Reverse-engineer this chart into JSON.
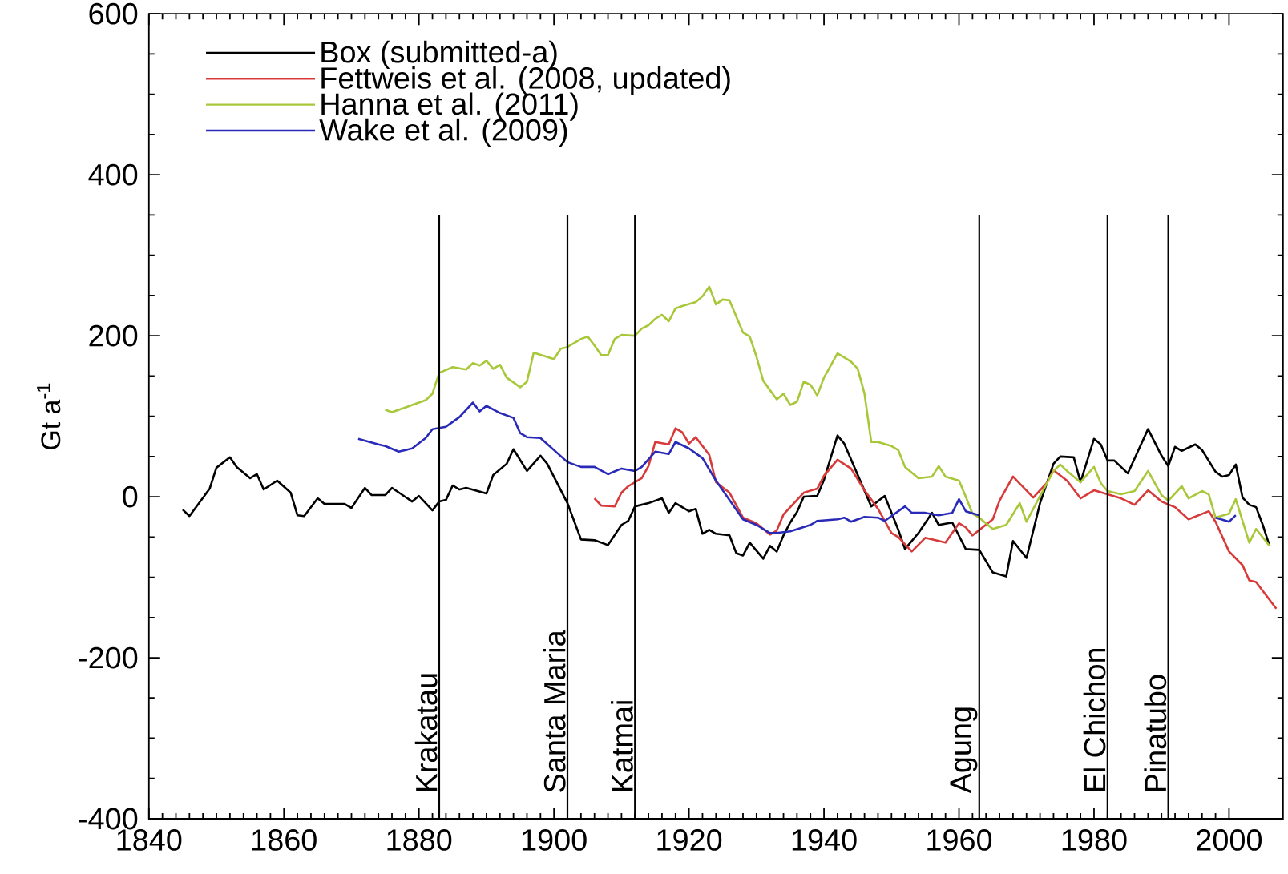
{
  "chart_data": {
    "type": "line",
    "ylabel": "Gt a$^{-1}$",
    "xlim": [
      1840,
      2008
    ],
    "xticks": [
      1840,
      1860,
      1880,
      1900,
      1920,
      1940,
      1960,
      1980,
      2000
    ],
    "ylim": [
      -400,
      600
    ],
    "yticks": [
      -400,
      -200,
      0,
      200,
      400,
      600
    ],
    "legend": "top left",
    "series": [
      {
        "name": "Box (submitted-a)",
        "color": "#000000",
        "x": [
          1845,
          1846,
          1849,
          1850,
          1852,
          1853,
          1855,
          1856,
          1857,
          1859,
          1861,
          1862,
          1863,
          1865,
          1866,
          1869,
          1870,
          1872,
          1873,
          1875,
          1876,
          1879,
          1880,
          1882,
          1883,
          1884,
          1885,
          1886,
          1887,
          1890,
          1891,
          1893,
          1894,
          1896,
          1898,
          1899,
          1902,
          1904,
          1906,
          1908,
          1910,
          1911,
          1912,
          1914,
          1916,
          1917,
          1918,
          1920,
          1921,
          1922,
          1923,
          1924,
          1926,
          1927,
          1928,
          1929,
          1931,
          1932,
          1933,
          1934,
          1935,
          1936,
          1937,
          1939,
          1940,
          1942,
          1943,
          1947,
          1949,
          1951,
          1952,
          1954,
          1956,
          1957,
          1959,
          1961,
          1963,
          1965,
          1967,
          1968,
          1970,
          1972,
          1974,
          1975,
          1977,
          1978,
          1980,
          1981,
          1982,
          1983,
          1985,
          1988,
          1990,
          1991,
          1992,
          1993,
          1995,
          1996,
          1998,
          1999,
          2000,
          2001,
          2002,
          2003,
          2004,
          2005,
          2006
        ],
        "values": [
          -16,
          -24,
          10,
          36,
          49,
          37,
          23,
          28,
          9,
          20,
          5,
          -23,
          -24,
          -2,
          -9,
          -9,
          -14,
          11,
          2,
          2,
          11,
          -6,
          1,
          -17,
          -6,
          -4,
          14,
          9,
          11,
          4,
          27,
          41,
          59,
          32,
          51,
          41,
          -8,
          -53,
          -54,
          -60,
          -35,
          -30,
          -12,
          -8,
          -2,
          -20,
          -8,
          -18,
          -15,
          -46,
          -41,
          -46,
          -48,
          -70,
          -73,
          -57,
          -77,
          -61,
          -68,
          -48,
          -32,
          -19,
          0,
          1,
          21,
          76,
          66,
          -12,
          1,
          -41,
          -65,
          -45,
          -20,
          -35,
          -32,
          -65,
          -66,
          -94,
          -99,
          -55,
          -76,
          -8,
          41,
          50,
          49,
          18,
          72,
          65,
          45,
          45,
          29,
          84,
          51,
          38,
          62,
          57,
          65,
          58,
          31,
          25,
          27,
          40,
          -1,
          -10,
          -13,
          -35,
          -61
        ]
      },
      {
        "name": "Fettweis et al. (2008, updated)",
        "color": "#d83a3a",
        "x": [
          1906,
          1907,
          1909,
          1910,
          1911,
          1913,
          1914,
          1915,
          1917,
          1918,
          1919,
          1920,
          1921,
          1923,
          1924,
          1926,
          1928,
          1930,
          1932,
          1933,
          1934,
          1937,
          1939,
          1940,
          1942,
          1944,
          1946,
          1948,
          1950,
          1951,
          1953,
          1955,
          1957,
          1958,
          1960,
          1961,
          1962,
          1965,
          1966,
          1968,
          1971,
          1973,
          1974,
          1976,
          1978,
          1980,
          1982,
          1984,
          1986,
          1988,
          1990,
          1992,
          1994,
          1997,
          1998,
          2000,
          2002,
          2003,
          2004,
          2007
        ],
        "values": [
          -2,
          -11,
          -12,
          5,
          13,
          23,
          38,
          68,
          65,
          85,
          80,
          66,
          74,
          52,
          18,
          5,
          -26,
          -33,
          -47,
          -42,
          -22,
          5,
          10,
          26,
          46,
          35,
          8,
          -15,
          -45,
          -50,
          -68,
          -51,
          -55,
          -57,
          -33,
          -38,
          -48,
          -28,
          -5,
          25,
          -1,
          17,
          33,
          20,
          -2,
          8,
          3,
          -2,
          -10,
          8,
          -6,
          -13,
          -28,
          -18,
          -31,
          -68,
          -85,
          -104,
          -106,
          -139
        ]
      },
      {
        "name": "Hanna et al. (2011)",
        "color": "#a8c83a",
        "x": [
          1875,
          1876,
          1879,
          1881,
          1882,
          1883,
          1885,
          1887,
          1888,
          1889,
          1890,
          1891,
          1892,
          1893,
          1895,
          1896,
          1897,
          1900,
          1901,
          1902,
          1904,
          1905,
          1906,
          1907,
          1908,
          1909,
          1910,
          1912,
          1913,
          1914,
          1915,
          1916,
          1917,
          1918,
          1919,
          1921,
          1922,
          1923,
          1924,
          1925,
          1926,
          1928,
          1929,
          1930,
          1931,
          1933,
          1934,
          1935,
          1936,
          1937,
          1938,
          1939,
          1940,
          1942,
          1944,
          1945,
          1946,
          1947,
          1948,
          1950,
          1951,
          1952,
          1954,
          1956,
          1957,
          1958,
          1960,
          1961,
          1962,
          1963,
          1965,
          1967,
          1969,
          1970,
          1972,
          1974,
          1975,
          1976,
          1978,
          1980,
          1981,
          1982,
          1984,
          1986,
          1988,
          1990,
          1991,
          1993,
          1994,
          1996,
          1997,
          1998,
          2000,
          2001,
          2003,
          2004,
          2006
        ],
        "values": [
          108,
          105,
          114,
          120,
          128,
          154,
          161,
          158,
          166,
          163,
          169,
          159,
          164,
          148,
          136,
          143,
          179,
          171,
          184,
          186,
          196,
          199,
          188,
          176,
          176,
          196,
          201,
          200,
          209,
          213,
          221,
          226,
          218,
          234,
          237,
          242,
          249,
          261,
          239,
          245,
          244,
          204,
          199,
          174,
          144,
          121,
          128,
          114,
          118,
          143,
          139,
          126,
          148,
          178,
          168,
          159,
          128,
          68,
          68,
          63,
          58,
          37,
          23,
          25,
          38,
          25,
          20,
          0,
          -21,
          -26,
          -40,
          -35,
          -8,
          -31,
          1,
          32,
          40,
          32,
          18,
          37,
          17,
          7,
          3,
          7,
          32,
          2,
          -5,
          13,
          -2,
          7,
          3,
          -26,
          -21,
          -3,
          -57,
          -40,
          -61
        ]
      },
      {
        "name": "Wake et al. (2009)",
        "color": "#2a2ab8",
        "x": [
          1871,
          1874,
          1875,
          1877,
          1879,
          1881,
          1882,
          1884,
          1886,
          1888,
          1889,
          1890,
          1892,
          1894,
          1895,
          1896,
          1898,
          1902,
          1904,
          1906,
          1908,
          1910,
          1912,
          1913,
          1915,
          1917,
          1918,
          1920,
          1922,
          1924,
          1928,
          1930,
          1932,
          1933,
          1935,
          1938,
          1939,
          1942,
          1943,
          1944,
          1946,
          1948,
          1949,
          1952,
          1953,
          1955,
          1957,
          1959,
          1960,
          1961,
          1963,
          1980,
          1998,
          2000,
          2001
        ],
        "values": [
          72,
          65,
          63,
          56,
          60,
          73,
          84,
          87,
          99,
          117,
          106,
          113,
          104,
          98,
          79,
          74,
          73,
          43,
          37,
          37,
          28,
          35,
          32,
          37,
          56,
          53,
          68,
          60,
          48,
          20,
          -28,
          -35,
          -45,
          -45,
          -43,
          -35,
          -30,
          -28,
          -26,
          -31,
          -25,
          -26,
          -30,
          -12,
          -20,
          -20,
          -23,
          -20,
          -3,
          -18,
          -23,
          null,
          -26,
          -31,
          -23
        ]
      }
    ],
    "ref_lines": [
      {
        "axis": "x",
        "value": 1883,
        "label": "Krakatau"
      },
      {
        "axis": "x",
        "value": 1902,
        "label": "Santa Maria"
      },
      {
        "axis": "x",
        "value": 1912,
        "label": "Katmai"
      },
      {
        "axis": "x",
        "value": 1963,
        "label": "Agung"
      },
      {
        "axis": "x",
        "value": 1982,
        "label": "El Chichon"
      },
      {
        "axis": "x",
        "value": 1991,
        "label": "Pinatubo"
      }
    ]
  }
}
